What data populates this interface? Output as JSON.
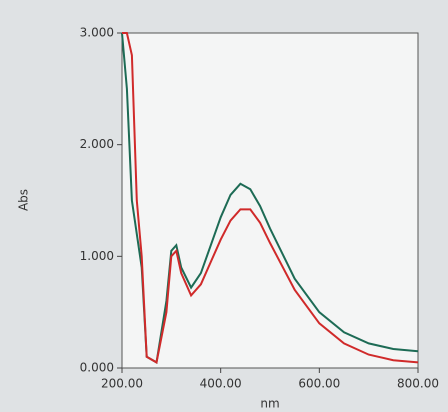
{
  "chart_data": {
    "type": "line",
    "y_label": "Abs",
    "x_label": "nm",
    "x": [
      200,
      210,
      220,
      230,
      240,
      250,
      270,
      290,
      300,
      310,
      320,
      340,
      360,
      380,
      400,
      420,
      440,
      460,
      480,
      500,
      550,
      600,
      650,
      700,
      750,
      800
    ],
    "series": [
      {
        "color": "#1d6b55",
        "values": [
          3.0,
          2.5,
          1.5,
          1.2,
          0.9,
          0.1,
          0.05,
          0.6,
          1.05,
          1.1,
          0.9,
          0.72,
          0.85,
          1.1,
          1.35,
          1.55,
          1.65,
          1.6,
          1.45,
          1.25,
          0.8,
          0.5,
          0.32,
          0.22,
          0.17,
          0.15
        ]
      },
      {
        "color": "#d02a2a",
        "values": [
          3.0,
          3.0,
          2.8,
          1.5,
          1.0,
          0.1,
          0.05,
          0.5,
          1.0,
          1.05,
          0.85,
          0.65,
          0.75,
          0.95,
          1.15,
          1.32,
          1.42,
          1.42,
          1.3,
          1.12,
          0.7,
          0.4,
          0.22,
          0.12,
          0.07,
          0.05
        ]
      }
    ],
    "xlim": [
      200,
      800
    ],
    "xticks": [
      {
        "value": 200,
        "label": "200.00"
      },
      {
        "value": 400,
        "label": "400.00"
      },
      {
        "value": 600,
        "label": "600.00"
      },
      {
        "value": 800,
        "label": "800.00"
      }
    ],
    "ylim": [
      0,
      3
    ],
    "yticks": [
      {
        "value": 0,
        "label": "0.000"
      },
      {
        "value": 1,
        "label": "1.000"
      },
      {
        "value": 2,
        "label": "2.000"
      },
      {
        "value": 3,
        "label": "3.000"
      }
    ]
  }
}
